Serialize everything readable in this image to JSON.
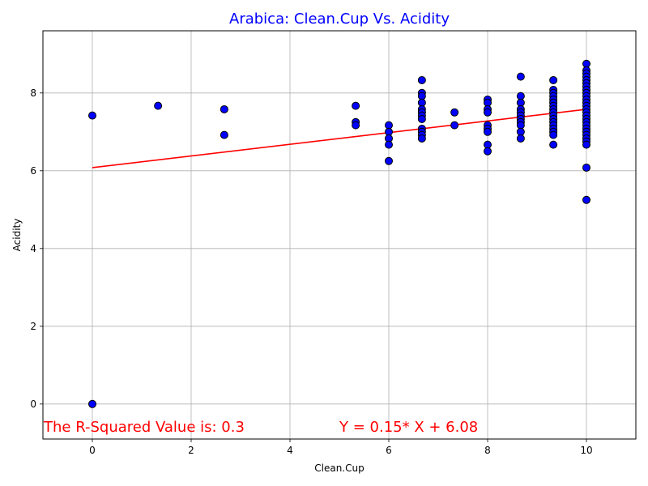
{
  "chart_data": {
    "type": "scatter",
    "title": "Arabica: Clean.Cup Vs. Acidity",
    "xlabel": "Clean.Cup",
    "ylabel": "Acidity",
    "xlim": [
      -1,
      11
    ],
    "ylim": [
      -0.9,
      9.6
    ],
    "xticks": [
      0,
      2,
      4,
      6,
      8,
      10
    ],
    "yticks": [
      0,
      2,
      4,
      6,
      8
    ],
    "grid": true,
    "colors": {
      "title": "#0000ff",
      "points": "#0000ff",
      "point_edge": "#000000",
      "fit_line": "#ff0000",
      "annotation": "#ff0000"
    },
    "series": [
      {
        "points": [
          [
            0,
            7.42
          ],
          [
            0,
            0
          ],
          [
            1.33,
            7.67
          ],
          [
            2.67,
            7.58
          ],
          [
            2.67,
            6.92
          ],
          [
            5.33,
            7.67
          ],
          [
            5.33,
            7.25
          ],
          [
            5.33,
            7.17
          ],
          [
            6,
            7.17
          ],
          [
            6,
            7.0
          ],
          [
            6,
            6.83
          ],
          [
            6,
            6.67
          ],
          [
            6,
            6.25
          ],
          [
            6.67,
            8.33
          ],
          [
            6.67,
            8.0
          ],
          [
            6.67,
            7.92
          ],
          [
            6.67,
            7.75
          ],
          [
            6.67,
            7.58
          ],
          [
            6.67,
            7.5
          ],
          [
            6.67,
            7.42
          ],
          [
            6.67,
            7.33
          ],
          [
            6.67,
            7.08
          ],
          [
            6.67,
            7.0
          ],
          [
            6.67,
            6.92
          ],
          [
            6.67,
            6.83
          ],
          [
            7.33,
            7.5
          ],
          [
            7.33,
            7.17
          ],
          [
            8,
            7.83
          ],
          [
            8,
            7.75
          ],
          [
            8,
            7.58
          ],
          [
            8,
            7.5
          ],
          [
            8,
            7.17
          ],
          [
            8,
            7.08
          ],
          [
            8,
            7.0
          ],
          [
            8,
            6.67
          ],
          [
            8,
            6.5
          ],
          [
            8.67,
            8.42
          ],
          [
            8.67,
            7.92
          ],
          [
            8.67,
            7.75
          ],
          [
            8.67,
            7.58
          ],
          [
            8.67,
            7.5
          ],
          [
            8.67,
            7.42
          ],
          [
            8.67,
            7.33
          ],
          [
            8.67,
            7.25
          ],
          [
            8.67,
            7.17
          ],
          [
            8.67,
            7.0
          ],
          [
            8.67,
            6.83
          ],
          [
            9.33,
            8.33
          ],
          [
            9.33,
            8.08
          ],
          [
            9.33,
            8.0
          ],
          [
            9.33,
            7.92
          ],
          [
            9.33,
            7.83
          ],
          [
            9.33,
            7.75
          ],
          [
            9.33,
            7.67
          ],
          [
            9.33,
            7.58
          ],
          [
            9.33,
            7.5
          ],
          [
            9.33,
            7.42
          ],
          [
            9.33,
            7.33
          ],
          [
            9.33,
            7.25
          ],
          [
            9.33,
            7.17
          ],
          [
            9.33,
            7.08
          ],
          [
            9.33,
            7.0
          ],
          [
            9.33,
            6.92
          ],
          [
            9.33,
            6.67
          ],
          [
            10,
            8.75
          ],
          [
            10,
            8.58
          ],
          [
            10,
            8.5
          ],
          [
            10,
            8.42
          ],
          [
            10,
            8.33
          ],
          [
            10,
            8.25
          ],
          [
            10,
            8.17
          ],
          [
            10,
            8.08
          ],
          [
            10,
            8.0
          ],
          [
            10,
            7.92
          ],
          [
            10,
            7.83
          ],
          [
            10,
            7.75
          ],
          [
            10,
            7.67
          ],
          [
            10,
            7.58
          ],
          [
            10,
            7.5
          ],
          [
            10,
            7.42
          ],
          [
            10,
            7.33
          ],
          [
            10,
            7.25
          ],
          [
            10,
            7.17
          ],
          [
            10,
            7.08
          ],
          [
            10,
            7.0
          ],
          [
            10,
            6.92
          ],
          [
            10,
            6.83
          ],
          [
            10,
            6.75
          ],
          [
            10,
            6.67
          ],
          [
            10,
            6.08
          ],
          [
            10,
            5.25
          ]
        ]
      }
    ],
    "fit_line": {
      "slope": 0.15,
      "intercept": 6.08,
      "x_range": [
        0,
        10
      ]
    },
    "annotations": {
      "r_squared": "The R-Squared Value is: 0.3",
      "equation": "Y = 0.15* X + 6.08"
    }
  }
}
